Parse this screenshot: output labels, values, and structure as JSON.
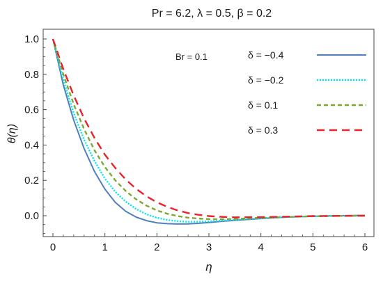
{
  "chart_data": {
    "type": "line",
    "title": "Pr = 6.2, λ = 0.5, β = 0.2",
    "xlabel": "η",
    "ylabel": "θ(η)",
    "xlim": [
      0,
      6
    ],
    "ylim": [
      -0.1,
      1.05
    ],
    "x_ticks": [
      "0",
      "1",
      "2",
      "3",
      "4",
      "5",
      "6"
    ],
    "y_ticks": [
      "0.0",
      "0.2",
      "0.4",
      "0.6",
      "0.8",
      "1.0"
    ],
    "grid": false,
    "legend_position": "top-right",
    "annotation": "Br = 0.1",
    "series": [
      {
        "name": "δ = −0.4",
        "color": "#4f7fbf",
        "dash": "solid",
        "x": [
          0,
          0.2,
          0.4,
          0.6,
          0.8,
          1.0,
          1.2,
          1.4,
          1.6,
          1.8,
          2.0,
          2.2,
          2.4,
          2.6,
          2.8,
          3.0,
          3.2,
          3.5,
          4.0,
          4.5,
          5.0,
          5.5,
          6.0
        ],
        "y": [
          1.0,
          0.74,
          0.54,
          0.38,
          0.25,
          0.15,
          0.075,
          0.025,
          -0.008,
          -0.028,
          -0.04,
          -0.045,
          -0.047,
          -0.046,
          -0.043,
          -0.038,
          -0.033,
          -0.026,
          -0.016,
          -0.008,
          -0.003,
          0.0,
          0.002
        ]
      },
      {
        "name": "δ = −0.2",
        "color": "#00e5ee",
        "dash": "dotted",
        "x": [
          0,
          0.2,
          0.4,
          0.6,
          0.8,
          1.0,
          1.2,
          1.4,
          1.6,
          1.8,
          2.0,
          2.2,
          2.4,
          2.6,
          2.8,
          3.0,
          3.2,
          3.5,
          4.0,
          4.5,
          5.0,
          5.5,
          6.0
        ],
        "y": [
          1.0,
          0.77,
          0.58,
          0.43,
          0.31,
          0.21,
          0.135,
          0.08,
          0.038,
          0.008,
          -0.012,
          -0.024,
          -0.031,
          -0.034,
          -0.034,
          -0.032,
          -0.029,
          -0.023,
          -0.014,
          -0.007,
          -0.003,
          -0.001,
          0.0
        ]
      },
      {
        "name": "δ = 0.1",
        "color": "#7fa832",
        "dash": "dashed",
        "x": [
          0,
          0.2,
          0.4,
          0.6,
          0.8,
          1.0,
          1.2,
          1.4,
          1.6,
          1.8,
          2.0,
          2.2,
          2.4,
          2.6,
          2.8,
          3.0,
          3.2,
          3.5,
          4.0,
          4.5,
          5.0,
          5.5,
          6.0
        ],
        "y": [
          1.0,
          0.8,
          0.63,
          0.49,
          0.37,
          0.275,
          0.2,
          0.14,
          0.093,
          0.057,
          0.03,
          0.011,
          -0.002,
          -0.011,
          -0.016,
          -0.019,
          -0.02,
          -0.018,
          -0.012,
          -0.007,
          -0.003,
          -0.001,
          0.0
        ]
      },
      {
        "name": "δ = 0.3",
        "color": "#e8232a",
        "dash": "longdash",
        "x": [
          0,
          0.2,
          0.4,
          0.6,
          0.8,
          1.0,
          1.2,
          1.4,
          1.6,
          1.8,
          2.0,
          2.2,
          2.4,
          2.6,
          2.8,
          3.0,
          3.2,
          3.5,
          4.0,
          4.5,
          5.0,
          5.5,
          6.0
        ],
        "y": [
          1.0,
          0.83,
          0.68,
          0.55,
          0.44,
          0.345,
          0.27,
          0.205,
          0.152,
          0.11,
          0.076,
          0.05,
          0.03,
          0.015,
          0.005,
          -0.002,
          -0.006,
          -0.009,
          -0.008,
          -0.005,
          -0.002,
          -0.001,
          0.0
        ]
      }
    ]
  }
}
